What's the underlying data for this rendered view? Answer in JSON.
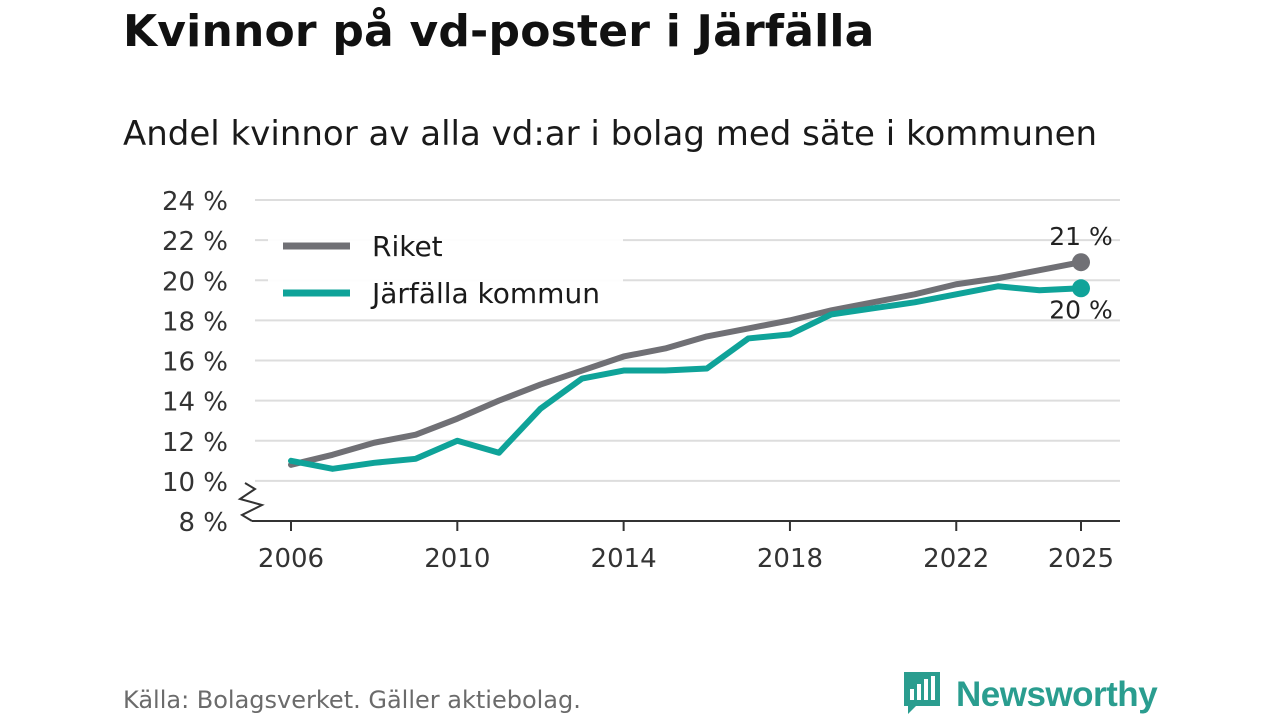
{
  "title": "Kvinnor på vd-poster i Järfälla",
  "subtitle": "Andel kvinnor av alla vd:ar i bolag med säte i kommunen",
  "footer": {
    "source": "Källa: Bolagsverket. Gäller aktiebolag."
  },
  "brand": {
    "name": "Newsworthy",
    "icon": "newsworthy-logo-icon",
    "color": "#2a9d8f"
  },
  "chart_data": {
    "type": "line",
    "title": "Kvinnor på vd-poster i Järfälla",
    "subtitle": "Andel kvinnor av alla vd:ar i bolag med säte i kommunen",
    "xlabel": "",
    "ylabel": "",
    "x": [
      2006,
      2007,
      2008,
      2009,
      2010,
      2011,
      2012,
      2013,
      2014,
      2015,
      2016,
      2017,
      2018,
      2019,
      2020,
      2021,
      2022,
      2023,
      2024,
      2025
    ],
    "x_ticks": [
      2006,
      2010,
      2014,
      2018,
      2022,
      2025
    ],
    "x_tick_labels": [
      "2006",
      "2010",
      "2014",
      "2018",
      "2022",
      "2025"
    ],
    "ylim": [
      8,
      24
    ],
    "y_ticks": [
      8,
      10,
      12,
      14,
      16,
      18,
      20,
      22,
      24
    ],
    "y_tick_labels": [
      "8 %",
      "10 %",
      "12 %",
      "14 %",
      "16 %",
      "18 %",
      "20 %",
      "22 %",
      "24 %"
    ],
    "axis_break": true,
    "grid": true,
    "legend_position": "top-left",
    "series": [
      {
        "name": "Riket",
        "color": "#707075",
        "values": [
          10.8,
          11.3,
          11.9,
          12.3,
          13.1,
          14.0,
          14.8,
          15.5,
          16.2,
          16.6,
          17.2,
          17.6,
          18.0,
          18.5,
          18.9,
          19.3,
          19.8,
          20.1,
          20.5,
          20.9
        ],
        "end_label": "21 %"
      },
      {
        "name": "Järfälla kommun",
        "color": "#0fa399",
        "values": [
          11.0,
          10.6,
          10.9,
          11.1,
          12.0,
          11.4,
          13.6,
          15.1,
          15.5,
          15.5,
          15.6,
          17.1,
          17.3,
          18.3,
          18.6,
          18.9,
          19.3,
          19.7,
          19.5,
          19.6
        ],
        "end_label": "20 %"
      }
    ]
  }
}
